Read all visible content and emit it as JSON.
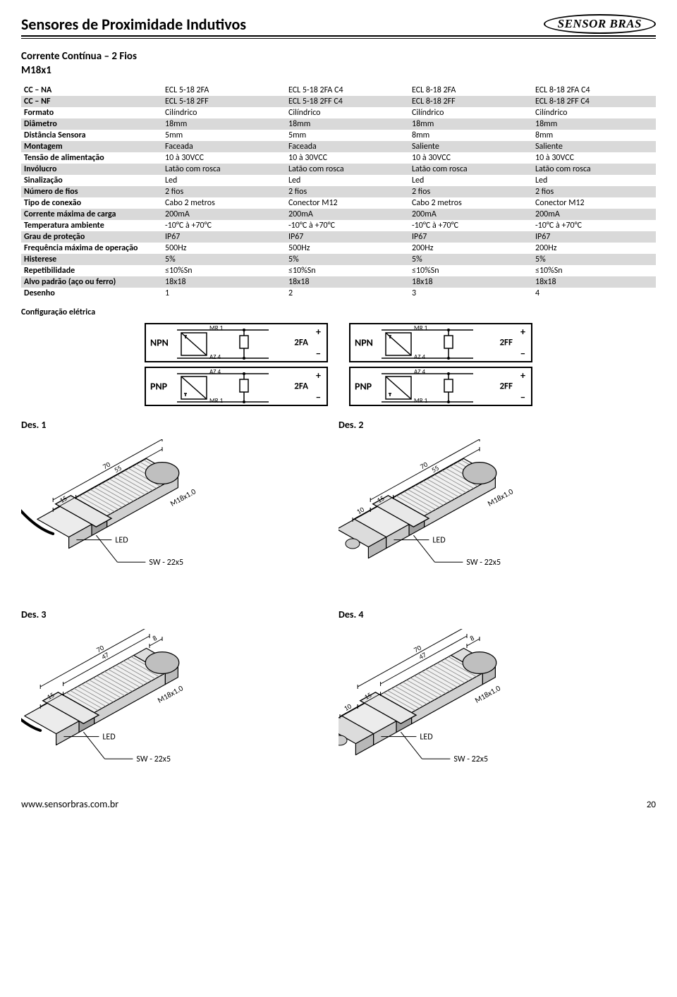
{
  "header": {
    "title": "Sensores de Proximidade Indutivos",
    "logo_text": "SENSOR BRAS"
  },
  "subtitle_line1": "Corrente Contínua – 2 Fios",
  "subtitle_line2": "M18x1",
  "table": {
    "rows": [
      {
        "shaded": false,
        "label": "CC – NA",
        "c1": "ECL 5-18 2FA",
        "c2": "ECL 5-18 2FA C4",
        "c3": "ECL 8-18 2FA",
        "c4": "ECL 8-18 2FA C4"
      },
      {
        "shaded": true,
        "label": "CC – NF",
        "c1": "ECL 5-18 2FF",
        "c2": "ECL 5-18 2FF C4",
        "c3": "ECL 8-18 2FF",
        "c4": "ECL 8-18 2FF C4"
      },
      {
        "shaded": false,
        "label": "Formato",
        "c1": "Cilíndrico",
        "c2": "Cilíndrico",
        "c3": "Cilíndrico",
        "c4": "Cilíndrico"
      },
      {
        "shaded": true,
        "label": "Diâmetro",
        "c1": "18mm",
        "c2": "18mm",
        "c3": "18mm",
        "c4": "18mm"
      },
      {
        "shaded": false,
        "label": "Distância Sensora",
        "c1": "5mm",
        "c2": "5mm",
        "c3": "8mm",
        "c4": "8mm"
      },
      {
        "shaded": true,
        "label": "Montagem",
        "c1": "Faceada",
        "c2": "Faceada",
        "c3": "Saliente",
        "c4": "Saliente"
      },
      {
        "shaded": false,
        "label": "Tensão de alimentação",
        "c1": "10 à 30VCC",
        "c2": "10 à 30VCC",
        "c3": "10 à 30VCC",
        "c4": "10 à 30VCC"
      },
      {
        "shaded": true,
        "label": "Invólucro",
        "c1": "Latão com rosca",
        "c2": "Latão com rosca",
        "c3": "Latão com rosca",
        "c4": "Latão com rosca"
      },
      {
        "shaded": false,
        "label": "Sinalização",
        "c1": "Led",
        "c2": "Led",
        "c3": "Led",
        "c4": "Led"
      },
      {
        "shaded": true,
        "label": "Número de fios",
        "c1": "2 fios",
        "c2": "2 fios",
        "c3": "2 fios",
        "c4": "2 fios"
      },
      {
        "shaded": false,
        "label": "Tipo de conexão",
        "c1": "Cabo 2 metros",
        "c2": "Conector M12",
        "c3": "Cabo 2 metros",
        "c4": "Conector M12"
      },
      {
        "shaded": true,
        "label": "Corrente máxima de carga",
        "c1": "200mA",
        "c2": "200mA",
        "c3": "200mA",
        "c4": "200mA"
      },
      {
        "shaded": false,
        "label": "Temperatura ambiente",
        "c1": "-10°C à +70°C",
        "c2": "-10°C à +70°C",
        "c3": "-10°C à +70°C",
        "c4": "-10°C à +70°C"
      },
      {
        "shaded": true,
        "label": "Grau de proteção",
        "c1": "IP67",
        "c2": "IP67",
        "c3": "IP67",
        "c4": "IP67"
      },
      {
        "shaded": false,
        "label": "Frequência máxima de operação",
        "c1": "500Hz",
        "c2": "500Hz",
        "c3": "200Hz",
        "c4": "200Hz"
      },
      {
        "shaded": true,
        "label": "Histerese",
        "c1": "5%",
        "c2": "5%",
        "c3": "5%",
        "c4": "5%"
      },
      {
        "shaded": false,
        "label": "Repetibilidade",
        "c1": "≤10%Sn",
        "c2": "≤10%Sn",
        "c3": "≤10%Sn",
        "c4": "≤10%Sn"
      },
      {
        "shaded": true,
        "label": "Alvo padrão (aço ou ferro)",
        "c1": "18x18",
        "c2": "18x18",
        "c3": "18x18",
        "c4": "18x18"
      },
      {
        "shaded": false,
        "label": "Desenho",
        "c1": "1",
        "c2": "2",
        "c3": "3",
        "c4": "4"
      }
    ]
  },
  "config_label": "Configuração elétrica",
  "circuits": {
    "wire_top": "MR 1",
    "wire_bot": "AZ 4",
    "boxes": [
      {
        "type": "NPN",
        "out": "2FA"
      },
      {
        "type": "NPN",
        "out": "2FF"
      },
      {
        "type": "PNP",
        "out": "2FA"
      },
      {
        "type": "PNP",
        "out": "2FF"
      }
    ]
  },
  "drawings": {
    "d1": {
      "label": "Des. 1",
      "dims": {
        "total": "70",
        "body": "55",
        "tip": "15"
      },
      "thread": "M18x1.0",
      "led": "LED",
      "sw": "SW - 22x5",
      "connector": false,
      "nose": "flush"
    },
    "d2": {
      "label": "Des. 2",
      "dims": {
        "total": "70",
        "body": "55",
        "tip": "15",
        "conn": "10"
      },
      "thread": "M18x1.0",
      "led": "LED",
      "sw": "SW - 22x5",
      "connector": true,
      "nose": "flush"
    },
    "d3": {
      "label": "Des. 3",
      "dims": {
        "total": "70",
        "body": "47",
        "tip": "15",
        "nose": "8"
      },
      "thread": "M18x1.0",
      "led": "LED",
      "sw": "SW - 22x5",
      "connector": false,
      "nose": "salient"
    },
    "d4": {
      "label": "Des. 4",
      "dims": {
        "total": "70",
        "body": "47",
        "tip": "15",
        "conn": "10",
        "nose": "8"
      },
      "thread": "M18x1.0",
      "led": "LED",
      "sw": "SW - 22x5",
      "connector": true,
      "nose": "salient"
    }
  },
  "footer": {
    "url": "www.sensorbras.com.br",
    "page": "20"
  },
  "colors": {
    "shaded_row": "#d9d9d9",
    "text": "#000000",
    "background": "#ffffff"
  }
}
